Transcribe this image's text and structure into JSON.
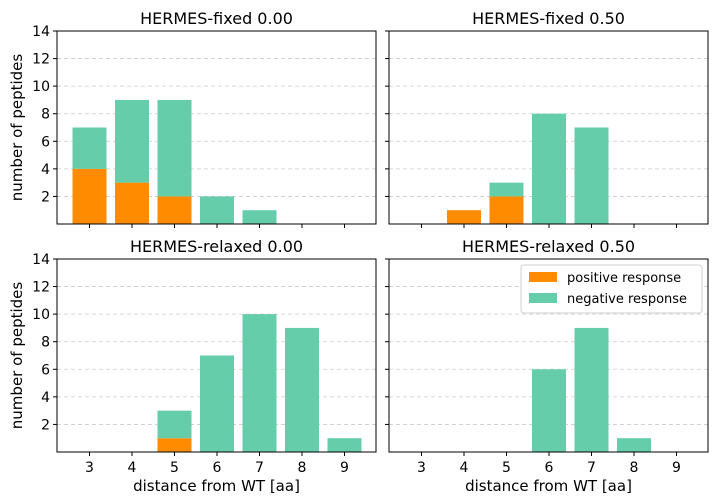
{
  "chart_data": [
    {
      "type": "bar",
      "stacked": true,
      "title": "HERMES-fixed 0.00",
      "categories": [
        "3",
        "4",
        "5",
        "6",
        "7",
        "8",
        "9"
      ],
      "series": [
        {
          "name": "positive response",
          "values": [
            4,
            3,
            2,
            0,
            0,
            0,
            0
          ]
        },
        {
          "name": "negative response",
          "values": [
            3,
            6,
            7,
            2,
            1,
            0,
            0
          ]
        }
      ],
      "xlabel": "",
      "ylabel": "number of peptides",
      "ylim": [
        0,
        14
      ],
      "yticks": [
        2,
        4,
        6,
        8,
        10,
        12,
        14
      ],
      "grid": "y-dashed"
    },
    {
      "type": "bar",
      "stacked": true,
      "title": "HERMES-fixed 0.50",
      "categories": [
        "3",
        "4",
        "5",
        "6",
        "7",
        "8",
        "9"
      ],
      "series": [
        {
          "name": "positive response",
          "values": [
            0,
            1,
            2,
            0,
            0,
            0,
            0
          ]
        },
        {
          "name": "negative response",
          "values": [
            0,
            0,
            1,
            8,
            7,
            0,
            0
          ]
        }
      ],
      "xlabel": "",
      "ylabel": "",
      "ylim": [
        0,
        14
      ],
      "yticks": [
        2,
        4,
        6,
        8,
        10,
        12,
        14
      ],
      "grid": "y-dashed"
    },
    {
      "type": "bar",
      "stacked": true,
      "title": "HERMES-relaxed 0.00",
      "categories": [
        "3",
        "4",
        "5",
        "6",
        "7",
        "8",
        "9"
      ],
      "series": [
        {
          "name": "positive response",
          "values": [
            0,
            0,
            1,
            0,
            0,
            0,
            0
          ]
        },
        {
          "name": "negative response",
          "values": [
            0,
            0,
            2,
            7,
            10,
            9,
            1
          ]
        }
      ],
      "xlabel": "distance from WT [aa]",
      "ylabel": "number of peptides",
      "ylim": [
        0,
        14
      ],
      "yticks": [
        2,
        4,
        6,
        8,
        10,
        12,
        14
      ],
      "grid": "y-dashed"
    },
    {
      "type": "bar",
      "stacked": true,
      "title": "HERMES-relaxed 0.50",
      "categories": [
        "3",
        "4",
        "5",
        "6",
        "7",
        "8",
        "9"
      ],
      "series": [
        {
          "name": "positive response",
          "values": [
            0,
            0,
            0,
            0,
            0,
            0,
            0
          ]
        },
        {
          "name": "negative response",
          "values": [
            0,
            0,
            0,
            6,
            9,
            1,
            0
          ]
        }
      ],
      "xlabel": "distance from WT [aa]",
      "ylabel": "",
      "ylim": [
        0,
        14
      ],
      "yticks": [
        2,
        4,
        6,
        8,
        10,
        12,
        14
      ],
      "grid": "y-dashed",
      "legend": "top-right"
    }
  ],
  "legend": {
    "placement": "top-right",
    "entries": [
      {
        "label": "positive response",
        "color": "#ff8c00"
      },
      {
        "label": "negative response",
        "color": "#66cdaa"
      }
    ]
  },
  "colors": {
    "positive": "#ff8c00",
    "negative": "#66cdaa",
    "grid": "#cccccc",
    "axes": "#000000"
  }
}
